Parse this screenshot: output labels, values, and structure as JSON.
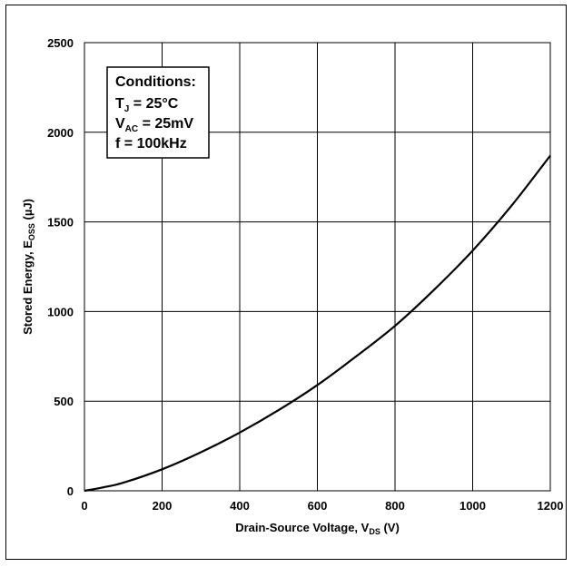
{
  "chart_data": {
    "type": "line",
    "xlabel": {
      "main": "Drain-Source Voltage, V",
      "sub": "DS",
      "tail": " (V)"
    },
    "ylabel": {
      "main": "Stored Energy, E",
      "sub": "OSS",
      "tail": " (µJ)"
    },
    "xlim": [
      0,
      1200
    ],
    "ylim": [
      0,
      2500
    ],
    "x_ticks": [
      0,
      200,
      400,
      600,
      800,
      1000,
      1200
    ],
    "y_ticks": [
      0,
      500,
      1000,
      1500,
      2000,
      2500
    ],
    "grid": true,
    "annotation": {
      "title": "Conditions:",
      "lines": [
        {
          "main": "T",
          "sub": "J",
          "tail": " = 25°C"
        },
        {
          "main": "V",
          "sub": "AC",
          "tail": " = 25mV"
        },
        {
          "main": "f = 100kHz",
          "sub": "",
          "tail": ""
        }
      ]
    },
    "series": [
      {
        "x": [
          0,
          50,
          100,
          200,
          300,
          400,
          500,
          600,
          700,
          800,
          900,
          1000,
          1100,
          1200
        ],
        "y": [
          0,
          20,
          45,
          120,
          215,
          325,
          450,
          590,
          750,
          920,
          1120,
          1340,
          1590,
          1870
        ]
      }
    ]
  }
}
